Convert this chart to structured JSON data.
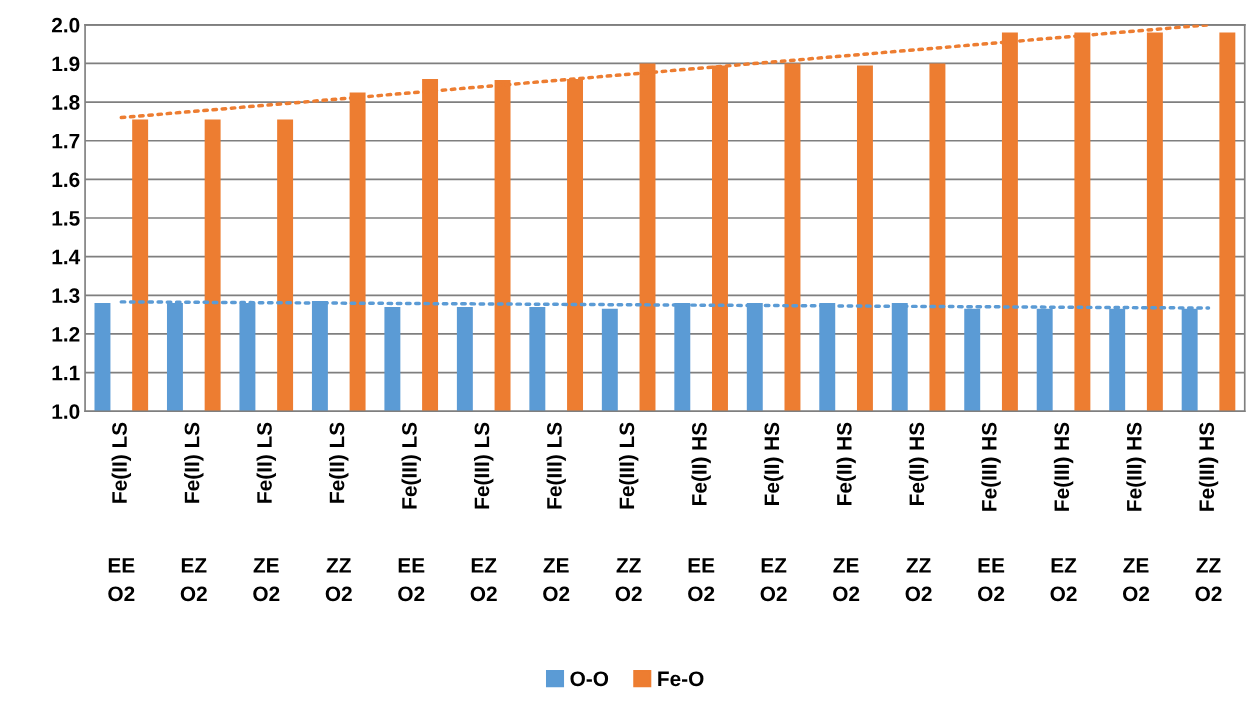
{
  "chart_data": {
    "type": "bar",
    "categories": [
      "Fe(II) LS\nEE\nO2",
      "Fe(II) LS\nEZ\nO2",
      "Fe(II) LS\nZE\nO2",
      "Fe(II) LS\nZZ\nO2",
      "Fe(III) LS\nEE\nO2",
      "Fe(III) LS\nEZ\nO2",
      "Fe(III) LS\nZE\nO2",
      "Fe(III) LS\nZZ\nO2",
      "Fe(II) HS\nEE\nO2",
      "Fe(II) HS\nEZ\nO2",
      "Fe(II) HS\nZE\nO2",
      "Fe(II) HS\nZZ\nO2",
      "Fe(III) HS\nEE\nO2",
      "Fe(III) HS\nEZ\nO2",
      "Fe(III) HS\nZE\nO2",
      "Fe(III) HS\nZZ\nO2"
    ],
    "series": [
      {
        "name": "O-O",
        "color": "#5b9bd5",
        "values": [
          1.28,
          1.28,
          1.28,
          1.285,
          1.27,
          1.27,
          1.27,
          1.265,
          1.28,
          1.28,
          1.28,
          1.28,
          1.265,
          1.265,
          1.265,
          1.265
        ]
      },
      {
        "name": "Fe-O",
        "color": "#ed7d31",
        "values": [
          1.755,
          1.755,
          1.755,
          1.825,
          1.86,
          1.857,
          1.86,
          1.9,
          1.895,
          1.9,
          1.895,
          1.9,
          1.98,
          1.98,
          1.98,
          1.98
        ]
      },
      {
        "type": "line",
        "color": "#5b9bd5",
        "line_style": "dotted",
        "values": [
          1.283,
          null,
          null,
          null,
          null,
          null,
          null,
          null,
          null,
          null,
          null,
          null,
          null,
          null,
          null,
          1.267
        ]
      },
      {
        "type": "line",
        "color": "#ed7d31",
        "line_style": "dotted",
        "values": [
          1.76,
          null,
          null,
          null,
          null,
          null,
          null,
          null,
          null,
          null,
          null,
          null,
          null,
          null,
          null,
          2.0
        ]
      }
    ],
    "ylim": [
      1.0,
      2.0
    ],
    "yticks": [
      {
        "value": 1.0,
        "label": "1.0"
      },
      {
        "value": 1.1,
        "label": "1.1"
      },
      {
        "value": 1.2,
        "label": "1.2"
      },
      {
        "value": 1.3,
        "label": "1.3"
      },
      {
        "value": 1.4,
        "label": "1.4"
      },
      {
        "value": 1.5,
        "label": "1.5"
      },
      {
        "value": 1.6,
        "label": "1.6"
      },
      {
        "value": 1.7,
        "label": "1.7"
      },
      {
        "value": 1.8,
        "label": "1.8"
      },
      {
        "value": 1.9,
        "label": "1.9"
      },
      {
        "value": 2.0,
        "label": "2.0"
      }
    ],
    "grid": "y",
    "legend": "bottom"
  }
}
